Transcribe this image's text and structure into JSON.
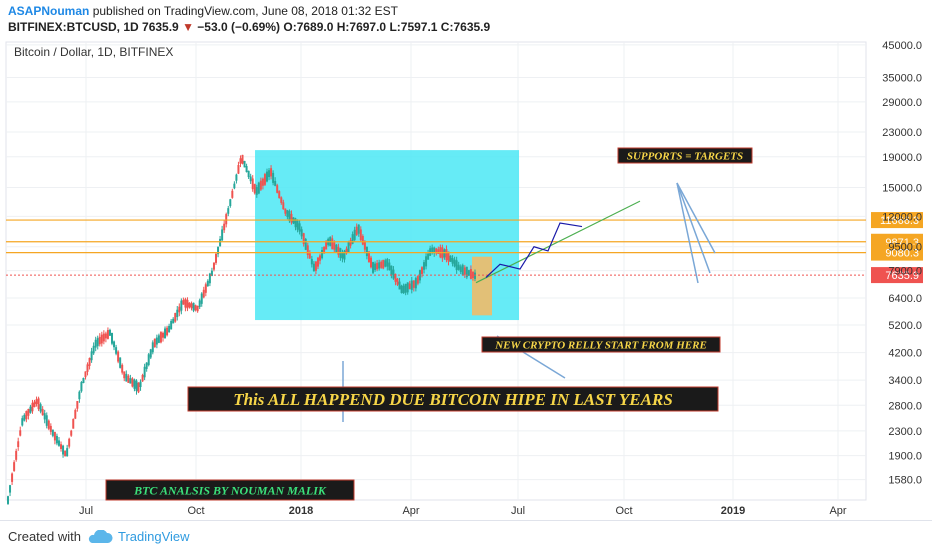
{
  "header": {
    "author": "ASAPNouman",
    "published": "published on TradingView.com, June 08, 2018 01:32 EST",
    "symbol": "BITFINEX:BTCUSD, 1D",
    "last": "7635.9",
    "change": "−53.0 (−0.69%)",
    "ohlc": "O:7689.0 H:7697.0 L:7597.1 C:7635.9"
  },
  "footer": {
    "created": "Created with",
    "brand": "TradingView",
    "logo_icon": "tradingview-cloud-icon"
  },
  "colors": {
    "up": "#26a69a",
    "down": "#ef5350",
    "level": "#f5a623",
    "box": "#4be8f5",
    "note_bg": "#1a1a1a",
    "note_yellow": "#f7d648",
    "note_green": "#3be07a"
  },
  "chart_data": {
    "type": "candlestick",
    "title": "Bitcoin / Dollar, 1D, BITFINEX",
    "scale": "log",
    "ylim": [
      1350,
      46000
    ],
    "y_ticks": [
      "45000.0",
      "35000.0",
      "29000.0",
      "23000.0",
      "19000.0",
      "15000.0",
      "12000.0",
      "9500.0",
      "7900.0",
      "6400.0",
      "5200.0",
      "4200.0",
      "3400.0",
      "2800.0",
      "2300.0",
      "1900.0",
      "1580.0"
    ],
    "x_ticks": [
      "Jul",
      "Oct",
      "2018",
      "Apr",
      "Jul",
      "Oct",
      "2019",
      "Apr"
    ],
    "x_ticks_bold": [
      "2018",
      "2019"
    ],
    "grid": true,
    "series_path": [
      [
        2017.5,
        1350
      ],
      [
        2017.55,
        2500
      ],
      [
        2017.6,
        2900
      ],
      [
        2017.65,
        2300
      ],
      [
        2017.7,
        1900
      ],
      [
        2017.75,
        3200
      ],
      [
        2017.8,
        4500
      ],
      [
        2017.85,
        4900
      ],
      [
        2017.88,
        3500
      ],
      [
        2017.92,
        3200
      ],
      [
        2017.96,
        4500
      ],
      [
        2018.0,
        5000
      ],
      [
        2018.04,
        6200
      ],
      [
        2018.08,
        5900
      ],
      [
        2018.14,
        7800
      ],
      [
        2018.2,
        12000
      ],
      [
        2018.24,
        19000
      ],
      [
        2018.28,
        14500
      ],
      [
        2018.32,
        17000
      ],
      [
        2018.36,
        12500
      ],
      [
        2018.42,
        11000
      ],
      [
        2018.46,
        8000
      ],
      [
        2018.5,
        10000
      ],
      [
        2018.54,
        8800
      ],
      [
        2018.58,
        11000
      ],
      [
        2018.63,
        8100
      ],
      [
        2018.68,
        8400
      ],
      [
        2018.72,
        6800
      ],
      [
        2018.78,
        7200
      ],
      [
        2018.83,
        9300
      ],
      [
        2018.87,
        9000
      ],
      [
        2018.91,
        8000
      ],
      [
        2018.95,
        7600
      ]
    ],
    "x_domain": [
      2017.5,
      2019.35
    ],
    "levels": [
      {
        "label": "11666.3",
        "value": 11666.3
      },
      {
        "label": "9871.3",
        "value": 9871.3
      },
      {
        "label": "9080.3",
        "value": 9080.3
      }
    ],
    "last_price": {
      "label": "7635.9",
      "value": 7635.9
    },
    "annotations": [
      {
        "id": "supports",
        "text": "SUPPORTS = TARGETS"
      },
      {
        "id": "relly",
        "text": "NEW CRYPTO RELLY START FROM HERE"
      },
      {
        "id": "hipe",
        "text": "This ALL HAPPEND DUE BITCOIN HIPE IN LAST YEARS"
      },
      {
        "id": "author_note",
        "text": "BTC ANALSIS BY NOUMAN MALIK"
      }
    ]
  }
}
